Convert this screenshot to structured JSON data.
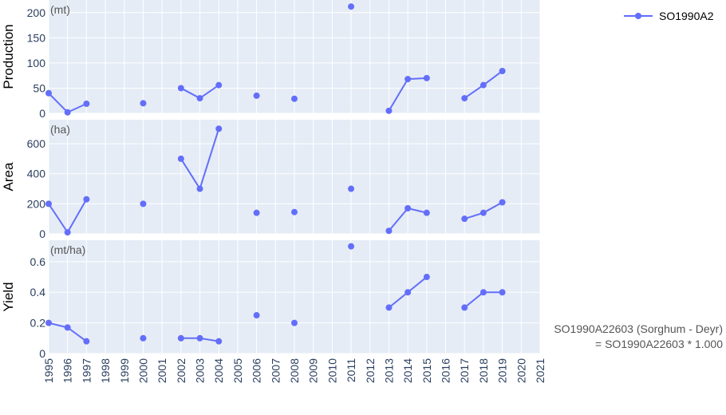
{
  "chart_data": {
    "type": "line",
    "series_name": "SO1990A2",
    "series_color": "#636efa",
    "plot_background": "#e5ecf6",
    "grid": true,
    "legend_placement": "top-right",
    "x_ticks": [
      "1995",
      "1996",
      "1997",
      "1998",
      "1999",
      "2000",
      "2001",
      "2002",
      "2003",
      "2004",
      "2005",
      "2006",
      "2007",
      "2008",
      "2009",
      "2010",
      "2011",
      "2012",
      "2013",
      "2014",
      "2015",
      "2016",
      "2017",
      "2018",
      "2019",
      "2020",
      "2021"
    ],
    "xlim": [
      1995,
      2021
    ],
    "panels": [
      {
        "ylabel": "Production",
        "unit": "(mt)",
        "ylim": [
          0,
          225
        ],
        "yticks": [
          0,
          50,
          100,
          150,
          200
        ],
        "ytick_labels": [
          "0",
          "50",
          "100",
          "150",
          "200"
        ],
        "values": [
          40,
          2,
          19,
          null,
          null,
          20,
          null,
          50,
          30,
          56,
          null,
          35,
          null,
          29,
          null,
          null,
          212,
          null,
          5,
          68,
          70,
          null,
          30,
          56,
          84
        ]
      },
      {
        "ylabel": "Area",
        "unit": "(ha)",
        "ylim": [
          0,
          760
        ],
        "yticks": [
          0,
          200,
          400,
          600
        ],
        "ytick_labels": [
          "0",
          "200",
          "400",
          "600"
        ],
        "values": [
          200,
          10,
          230,
          null,
          null,
          200,
          null,
          500,
          300,
          700,
          null,
          140,
          null,
          145,
          null,
          null,
          300,
          null,
          20,
          170,
          140,
          null,
          100,
          140,
          210
        ]
      },
      {
        "ylabel": "Yield",
        "unit": "(mt/ha)",
        "ylim": [
          0,
          0.74
        ],
        "yticks": [
          0,
          0.2,
          0.4,
          0.6
        ],
        "ytick_labels": [
          "0",
          "0.2",
          "0.4",
          "0.6"
        ],
        "values": [
          0.2,
          0.17,
          0.08,
          null,
          null,
          0.1,
          null,
          0.1,
          0.1,
          0.08,
          null,
          0.25,
          null,
          0.2,
          null,
          null,
          0.7,
          null,
          0.3,
          0.4,
          0.5,
          null,
          0.3,
          0.4,
          0.4
        ]
      }
    ]
  },
  "annotation": {
    "line1": "SO1990A22603 (Sorghum - Deyr)",
    "line2": "= SO1990A22603 * 1.000"
  }
}
